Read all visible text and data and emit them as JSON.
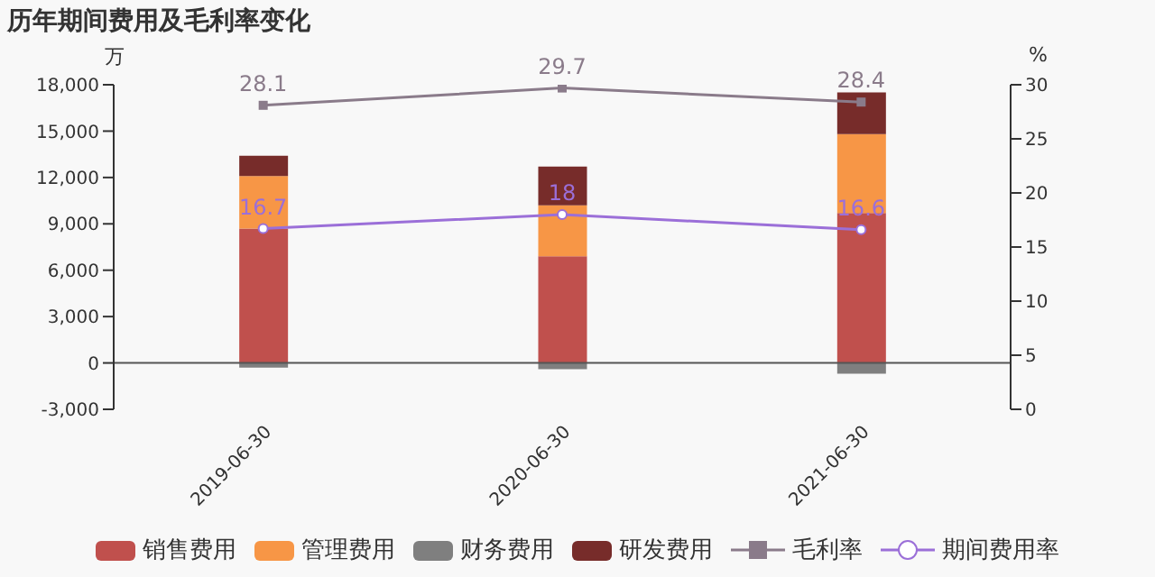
{
  "chart_data": {
    "type": "bar",
    "title": "历年期间费用及毛利率变化",
    "ylabel": "万",
    "y2label": "%",
    "categories": [
      "2019-06-30",
      "2020-06-30",
      "2021-06-30"
    ],
    "stacked": true,
    "series": [
      {
        "name": "销售费用",
        "color": "#c0504d",
        "values": [
          8700,
          6900,
          9700
        ]
      },
      {
        "name": "管理费用",
        "color": "#f79646",
        "values": [
          3400,
          3300,
          5100
        ]
      },
      {
        "name": "财务费用",
        "color": "#7f7f7f",
        "values": [
          -300,
          -400,
          -700
        ]
      },
      {
        "name": "研发费用",
        "color": "#772c2a",
        "values": [
          1300,
          2500,
          2700
        ]
      },
      {
        "name": "毛利率",
        "type": "line",
        "axis": "y2",
        "color": "#8a7b8a",
        "marker": "square",
        "data_labels": true,
        "values": [
          28.1,
          29.7,
          28.4
        ]
      },
      {
        "name": "期间费用率",
        "type": "line",
        "axis": "y2",
        "color": "#9b6fd8",
        "marker": "circle",
        "data_labels": true,
        "values": [
          16.7,
          18,
          16.6
        ]
      }
    ],
    "ylim": [
      -3000,
      18000
    ],
    "yticks": [
      {
        "value": -3000,
        "label": "-3,000"
      },
      0,
      {
        "value": 3000,
        "label": "3,000"
      },
      {
        "value": 6000,
        "label": "6,000"
      },
      {
        "value": 9000,
        "label": "9,000"
      },
      {
        "value": 12000,
        "label": "12,000"
      },
      {
        "value": 15000,
        "label": "15,000"
      },
      {
        "value": 18000,
        "label": "18,000"
      }
    ],
    "y2lim": [
      0,
      30
    ],
    "y2ticks": [
      0,
      5,
      10,
      15,
      20,
      25,
      30
    ],
    "legend": "bottom"
  }
}
